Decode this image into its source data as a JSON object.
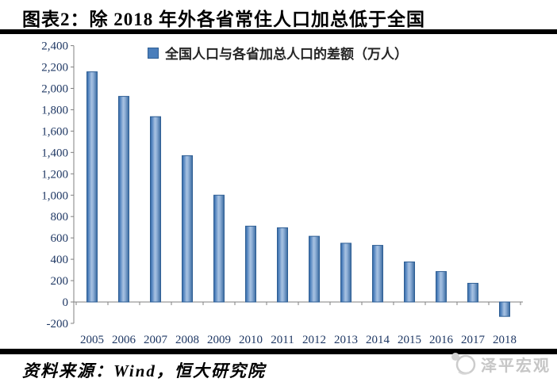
{
  "header": {
    "title": "图表2：除 2018 年外各省常住人口加总低于全国"
  },
  "chart_data": {
    "type": "bar",
    "title": "图表2：除 2018 年外各省常住人口加总低于全国",
    "legend": "全国人口与各省加总人口的差额（万人）",
    "categories": [
      "2005",
      "2006",
      "2007",
      "2008",
      "2009",
      "2010",
      "2011",
      "2012",
      "2013",
      "2014",
      "2015",
      "2016",
      "2017",
      "2018"
    ],
    "values": [
      2155,
      1925,
      1735,
      1370,
      1000,
      710,
      695,
      615,
      550,
      530,
      375,
      285,
      175,
      -135
    ],
    "ylim": [
      -200,
      2400
    ],
    "ytick_step": 200,
    "grid": false,
    "legend_position": "top-center",
    "bar_fill": "#4a7ebb",
    "bar_fill_light": "#a8c2e2",
    "bar_edge": "#2e5e94",
    "axis_line_color": "#808080",
    "axis_label_color": "#1f3864"
  },
  "footer": {
    "source": "资料来源：Wind，恒大研究院",
    "watermark": "泽平宏观"
  }
}
